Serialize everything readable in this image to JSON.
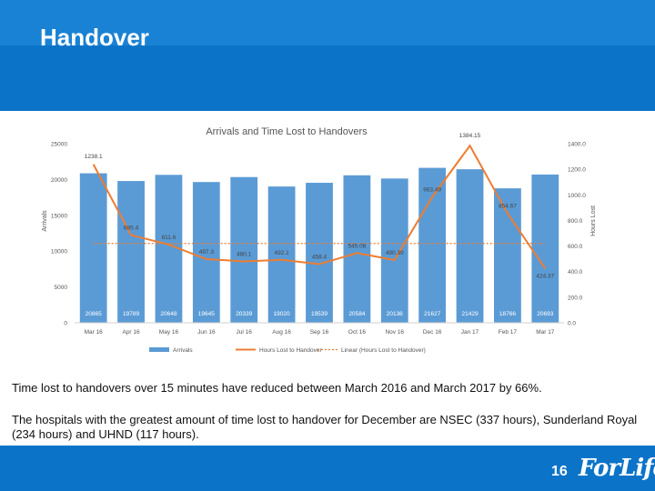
{
  "slide": {
    "title": "Handover",
    "paragraph1": "Time lost to handovers over 15 minutes have reduced between March 2016 and March 2017 by 66%.",
    "paragraph2": "The hospitals with the greatest amount of time lost to handover for December are NSEC (337 hours), Sunderland Royal (234 hours) and UHND (117 hours).",
    "page_number": "16",
    "logo_text": "ForLife"
  },
  "colors": {
    "header": "#0b74c8",
    "bars": "#5b9bd5",
    "line": "#ed7d31"
  },
  "chart_data": {
    "type": "bar",
    "title": "Arrivals and Time Lost to Handovers",
    "categories": [
      "Mar 16",
      "Apr 16",
      "May 16",
      "Jun 16",
      "Jul 16",
      "Aug 16",
      "Sep 16",
      "Oct 16",
      "Nov 16",
      "Dec 16",
      "Jan 17",
      "Feb 17",
      "Mar 17"
    ],
    "series": [
      {
        "name": "Arrivals",
        "type": "bar",
        "axis": "left",
        "values": [
          20865,
          19789,
          20648,
          19645,
          20339,
          19020,
          19539,
          20584,
          20136,
          21627,
          21429,
          18766,
          20693
        ],
        "labels": [
          "20865",
          "19789",
          "20648",
          "19645",
          "20339",
          "19020",
          "19539",
          "20584",
          "20136",
          "21627",
          "21429",
          "18766",
          "20693"
        ]
      },
      {
        "name": "Hours Lost to Handover",
        "type": "line",
        "axis": "right",
        "values": [
          1238.1,
          685.4,
          611.6,
          497.3,
          480.1,
          492.1,
          458.4,
          545.08,
          490.39,
          983.49,
          1384.15,
          854.67,
          424.37
        ],
        "labels": [
          "1238.1",
          "685.4",
          "611.6",
          "497.3",
          "480.1",
          "492.1",
          "458.4",
          "545.08",
          "490.39",
          "983.49",
          "1384.15",
          "854.67",
          "424.37"
        ]
      },
      {
        "name": "Linear (Hours Lost to Handover)",
        "type": "trendline",
        "axis": "right",
        "values": [
          620,
          620,
          620,
          620,
          620,
          620,
          620,
          620,
          620,
          620,
          620,
          620,
          620
        ]
      }
    ],
    "ylabel": "Arrivals",
    "y2label": "Hours Lost",
    "ylim": [
      0,
      25000
    ],
    "yticks": [
      "0",
      "5000",
      "10000",
      "15000",
      "20000",
      "25000"
    ],
    "y2lim": [
      0,
      1400
    ],
    "y2ticks": [
      "0.0",
      "200.0",
      "400.0",
      "600.0",
      "800.0",
      "1000.0",
      "1200.0",
      "1400.0"
    ],
    "legend_position": "bottom",
    "grid": false
  }
}
